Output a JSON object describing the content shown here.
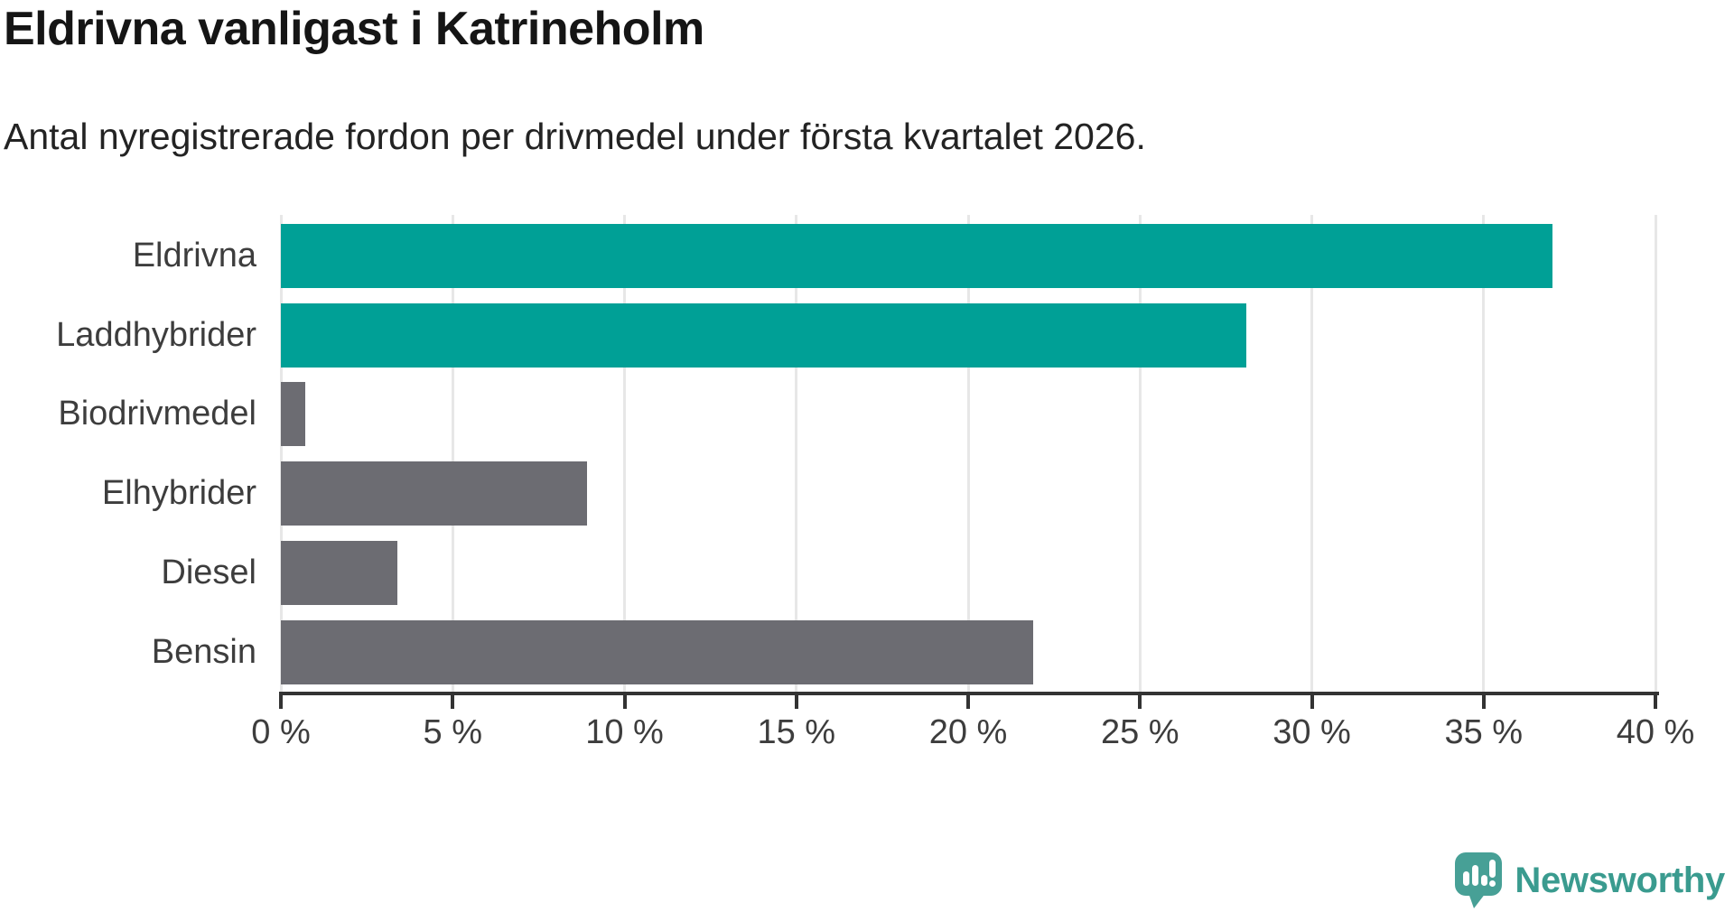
{
  "header": {
    "title": "Eldrivna vanligast i Katrineholm",
    "subtitle": "Antal nyregistrerade fordon per drivmedel under första kvartalet 2026."
  },
  "chart_data": {
    "type": "bar",
    "orientation": "horizontal",
    "title": "Eldrivna vanligast i Katrineholm",
    "subtitle": "Antal nyregistrerade fordon per drivmedel under första kvartalet 2026.",
    "categories": [
      "Eldrivna",
      "Laddhybrider",
      "Biodrivmedel",
      "Elhybrider",
      "Diesel",
      "Bensin"
    ],
    "values": [
      37.0,
      28.1,
      0.7,
      8.9,
      3.4,
      21.9
    ],
    "unit": "%",
    "bar_colors": [
      "#00a096",
      "#00a096",
      "#6c6c72",
      "#6c6c72",
      "#6c6c72",
      "#6c6c72"
    ],
    "highlight_color": "#00a096",
    "default_color": "#6c6c72",
    "xlim": [
      0,
      40
    ],
    "x_ticks": [
      0,
      5,
      10,
      15,
      20,
      25,
      30,
      35,
      40
    ],
    "x_tick_labels": [
      "0 %",
      "5 %",
      "10 %",
      "15 %",
      "20 %",
      "25 %",
      "30 %",
      "35 %",
      "40 %"
    ],
    "grid": "vertical",
    "gridline_color": "#e7e7e7",
    "axis_color": "#333333",
    "label_color": "#3d3d3d",
    "legend": "none"
  },
  "footer": {
    "brand": "Newsworthy",
    "brand_color": "#3a9b8f",
    "logo_bubble_color": "#47a096",
    "logo_icon": "newsworthy-speech-bubble-bar-chart-icon"
  }
}
